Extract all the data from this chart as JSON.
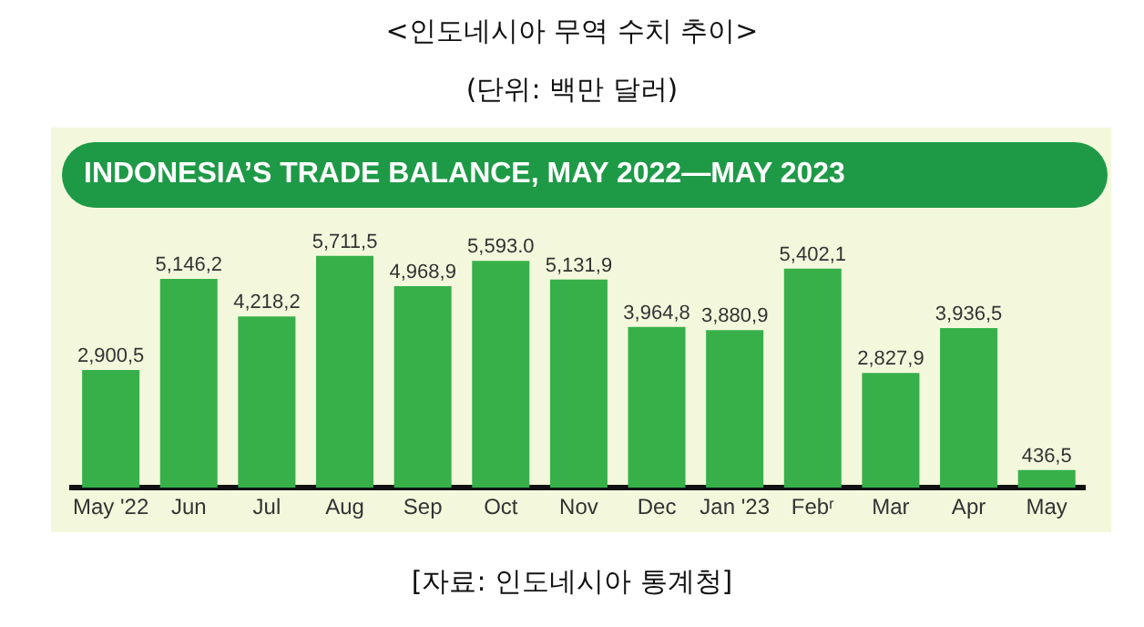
{
  "chart_data": {
    "type": "bar",
    "title": "<인도네시아 무역 수치 추이>",
    "subtitle": "(단위: 백만 달러)",
    "annotations": [
      "INDONESIA’S TRADE BALANCE, MAY 2022—MAY 2023",
      "[자료: 인도네시아 통계청]"
    ],
    "categories": [
      "May '22",
      "Jun",
      "Jul",
      "Aug",
      "Sep",
      "Oct",
      "Nov",
      "Dec",
      "Jan '23",
      "Febʳ",
      "Mar",
      "Apr",
      "May"
    ],
    "values": [
      2900.5,
      5146.2,
      4218.2,
      5711.5,
      4968.9,
      5593.0,
      5131.9,
      3964.8,
      3880.9,
      5402.1,
      2827.9,
      3936.5,
      436.5
    ],
    "value_labels": [
      "2,900,5",
      "5,146,2",
      "4,218,2",
      "5,711,5",
      "4,968,9",
      "5,593.0",
      "5,131,9",
      "3,964,8",
      "3,880,9",
      "5,402,1",
      "2,827,9",
      "3,936,5",
      "436,5"
    ],
    "color": "#37b04a",
    "grid": false,
    "legend": false,
    "tick_labels": "x"
  }
}
